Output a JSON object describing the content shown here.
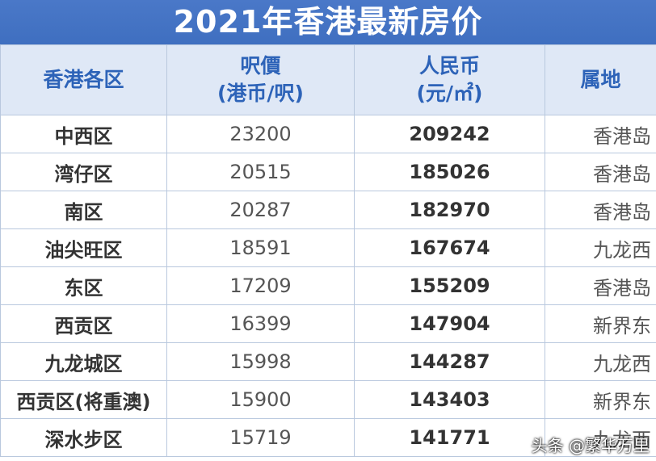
{
  "title": "2021年香港最新房价",
  "headers": {
    "district": "香港各区",
    "hkd_line1": "呎價",
    "hkd_line2": "(港币/呎)",
    "rmb_line1": "人民币",
    "rmb_line2": "(元/㎡)",
    "region": "属地"
  },
  "rows": [
    {
      "district": "中西区",
      "hkd": "23200",
      "rmb": "209242",
      "region": "香港岛"
    },
    {
      "district": "湾仔区",
      "hkd": "20515",
      "rmb": "185026",
      "region": "香港岛"
    },
    {
      "district": "南区",
      "hkd": "20287",
      "rmb": "182970",
      "region": "香港岛"
    },
    {
      "district": "油尖旺区",
      "hkd": "18591",
      "rmb": "167674",
      "region": "九龙西"
    },
    {
      "district": "东区",
      "hkd": "17209",
      "rmb": "155209",
      "region": "香港岛"
    },
    {
      "district": "西贡区",
      "hkd": "16399",
      "rmb": "147904",
      "region": "新界东"
    },
    {
      "district": "九龙城区",
      "hkd": "15998",
      "rmb": "144287",
      "region": "九龙西"
    },
    {
      "district": "西贡区(将重澳)",
      "hkd": "15900",
      "rmb": "143403",
      "region": "新界东"
    },
    {
      "district": "深水步区",
      "hkd": "15719",
      "rmb": "141771",
      "region": "九龙西"
    }
  ],
  "watermark": "头条 @繁华万里"
}
